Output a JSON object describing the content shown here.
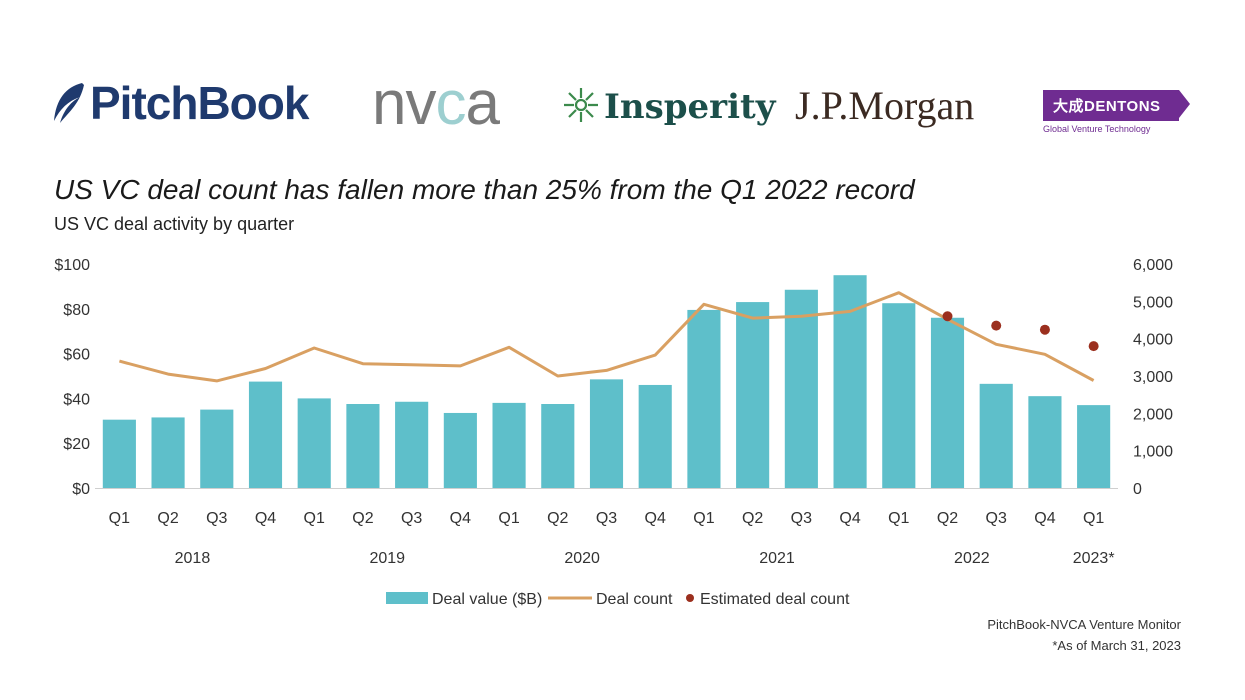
{
  "logos": {
    "pitchbook": "PitchBook",
    "nvca_n": "nv",
    "nvca_c": "c",
    "nvca_a": "a",
    "insperity": "Insperity",
    "jpmorgan": "J.P.Morgan",
    "dentons": "大成DENTONS",
    "dentons_sub": "Global Venture Technology"
  },
  "colors": {
    "bar": "#5ebfca",
    "line": "#d9a062",
    "estimate": "#9b2f1e",
    "axis_text": "#333333"
  },
  "chart_data": {
    "type": "bar+line",
    "title": "US VC deal count has fallen more than 25% from the Q1 2022 record",
    "subtitle": "US VC deal activity by quarter",
    "categories": [
      "Q1",
      "Q2",
      "Q3",
      "Q4",
      "Q1",
      "Q2",
      "Q3",
      "Q4",
      "Q1",
      "Q2",
      "Q3",
      "Q4",
      "Q1",
      "Q2",
      "Q3",
      "Q4",
      "Q1",
      "Q2",
      "Q3",
      "Q4",
      "Q1"
    ],
    "years": [
      {
        "label": "2018",
        "start": 0,
        "end": 3
      },
      {
        "label": "2019",
        "start": 4,
        "end": 7
      },
      {
        "label": "2020",
        "start": 8,
        "end": 11
      },
      {
        "label": "2021",
        "start": 12,
        "end": 15
      },
      {
        "label": "2022",
        "start": 16,
        "end": 19
      },
      {
        "label": "2023*",
        "start": 20,
        "end": 20
      }
    ],
    "series": [
      {
        "name": "Deal value ($B)",
        "type": "bar",
        "axis": "left",
        "values": [
          30.5,
          31.5,
          35,
          47.5,
          40,
          37.5,
          38.5,
          33.5,
          38,
          37.5,
          48.5,
          46,
          79.5,
          83,
          88.5,
          95,
          82.5,
          76,
          46.5,
          41,
          37
        ]
      },
      {
        "name": "Deal count",
        "type": "line",
        "axis": "right",
        "values": [
          3400,
          3050,
          2870,
          3200,
          3750,
          3330,
          3300,
          3270,
          3770,
          3000,
          3150,
          3560,
          4920,
          4550,
          4600,
          4730,
          5230,
          4520,
          3850,
          3580,
          2880
        ]
      },
      {
        "name": "Estimated deal count",
        "type": "scatter",
        "axis": "right",
        "points": [
          {
            "index": 17,
            "value": 4600
          },
          {
            "index": 18,
            "value": 4350
          },
          {
            "index": 19,
            "value": 4240
          },
          {
            "index": 20,
            "value": 3800
          }
        ]
      }
    ],
    "y_left": {
      "min": 0,
      "max": 100,
      "ticks": [
        "$0",
        "$20",
        "$40",
        "$60",
        "$80",
        "$100"
      ]
    },
    "y_right": {
      "min": 0,
      "max": 6000,
      "ticks": [
        "0",
        "1,000",
        "2,000",
        "3,000",
        "4,000",
        "5,000",
        "6,000"
      ]
    },
    "legend": [
      "Deal value ($B)",
      "Deal count",
      "Estimated deal count"
    ],
    "legend_placement": "bottom-center",
    "grid": false
  },
  "footer": {
    "source": "PitchBook-NVCA Venture Monitor",
    "note": "*As of March 31, 2023"
  }
}
